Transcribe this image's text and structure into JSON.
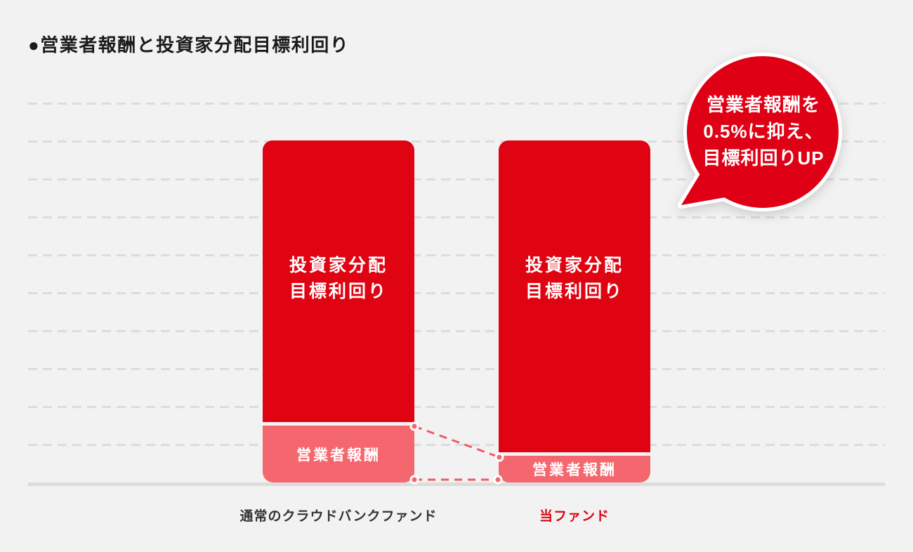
{
  "title": {
    "text": "●営業者報酬と投資家分配目標利回り"
  },
  "colors": {
    "primary_red": "#E00413",
    "light_red": "#F5676F",
    "connector_red": "#F25A62",
    "grid_gray": "#DCDCDC",
    "background": "#F2F2F2",
    "label_dark": "#333333"
  },
  "labels": {
    "investor_line1": "投資家分配",
    "investor_line2": "目標利回り",
    "fee": "営業者報酬",
    "x_normal": "通常のクラウドバンクファンド",
    "x_this": "当ファンド"
  },
  "bubble": {
    "line1": "営業者報酬を",
    "line2": "0.5%に抑え、",
    "line3": "目標利回りUP"
  },
  "chart_data": {
    "type": "bar",
    "variant": "stacked-comparison",
    "title": "●営業者報酬と投資家分配目標利回り",
    "categories": [
      "通常のクラウドバンクファンド",
      "当ファンド"
    ],
    "series": [
      {
        "name": "投資家分配目標利回り",
        "color": "#E00413",
        "values": [
          7.4,
          8.2
        ]
      },
      {
        "name": "営業者報酬",
        "color": "#F5676F",
        "values": [
          1.5,
          0.7
        ]
      }
    ],
    "value_unit": "gridline units (y axis unlabeled, conceptual heights)",
    "ylim": [
      0,
      10
    ],
    "grid": {
      "horizontal_dashed_lines": 10,
      "solid_baseline": true
    },
    "legend_position": "none (labels inside segments)",
    "annotation": {
      "text": "営業者報酬を0.5%に抑え、目標利回りUP",
      "attached_to": "当ファンド"
    },
    "connectors": "dashed lines with dots marking 営業者報酬 top and baseline between the two bars"
  }
}
